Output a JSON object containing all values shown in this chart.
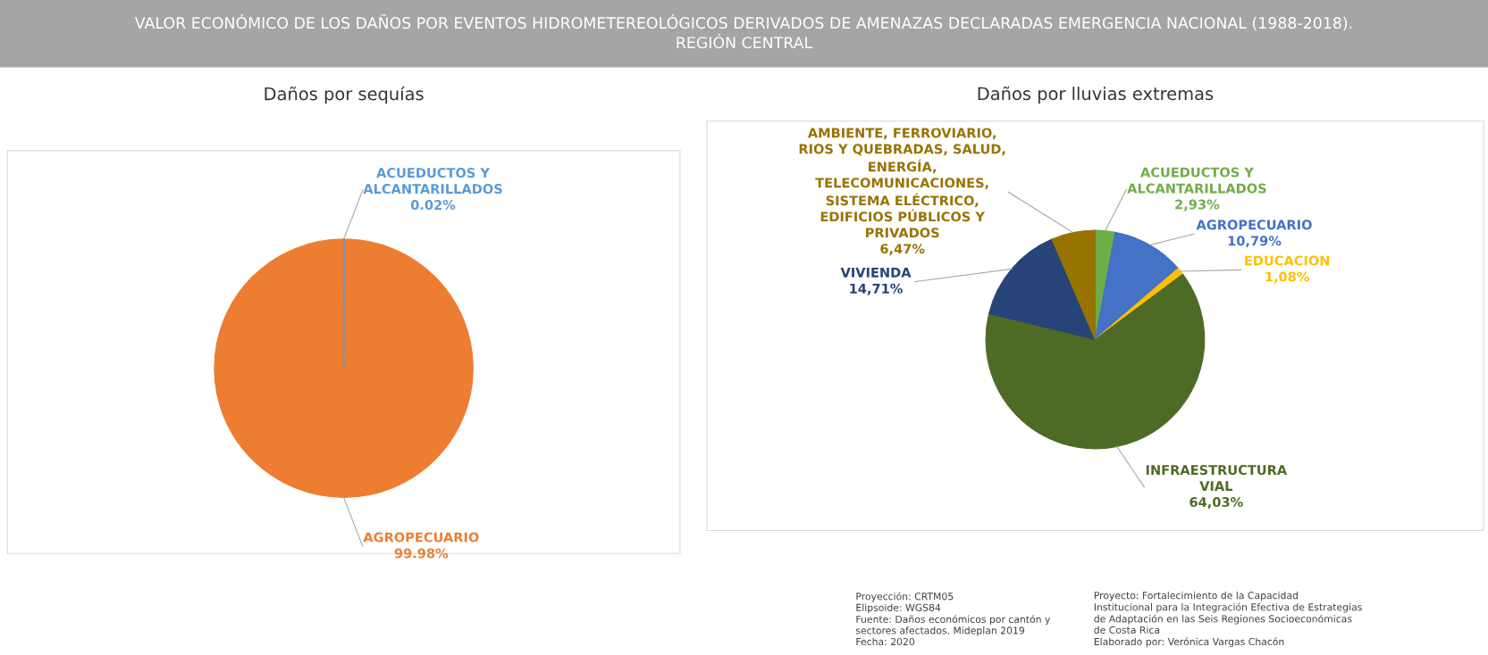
{
  "chart_data": [
    {
      "type": "other",
      "title": "VALOR ECONÓMICO DE LOS DAÑOS POR EVENTOS HIDROMETEREOLÓGICOS DERIVADOS DE AMENAZAS DECLARADAS EMERGENCIA NACIONAL (1988-2018).\nREGIÓN CENTRAL",
      "annotations": [
        "Proyección: CRTM05\nElipsoide: WGS84\nFuente: Daños económicos por cantón y\nsectores afectados. Mideplan 2019\nFecha: 2020",
        "Proyecto: Fortalecimiento de la Capacidad\nInstitucional para la Integración Efectiva de Estrategias\nde Adaptación en las Seis Regiones Socioeconómicas\nde Costa Rica\nElaborado por: Verónica Vargas Chacón"
      ]
    },
    {
      "type": "pie",
      "title": "Daños por sequías",
      "categories": [
        "ACUEDUCTOS Y\nALCANTARILLADOS",
        "AGROPECUARIO"
      ],
      "values": [
        0.02,
        99.98
      ],
      "colors": [
        "#5b9bd5",
        "#ed7d31"
      ],
      "value_labels": [
        "0.02%",
        "99.98%"
      ]
    },
    {
      "type": "pie",
      "title": "Daños por lluvias extremas",
      "categories": [
        "ACUEDUCTOS Y\nALCANTARILLADOS",
        "AGROPECUARIO",
        "EDUCACION",
        "INFRAESTRUCTURA\nVIAL",
        "VIVIENDA",
        "AMBIENTE, FERROVIARIO,\nRIOS Y QUEBRADAS, SALUD,\nENERGÍA,\nTELECOMUNICACIONES,\nSISTEMA ELÉCTRICO,\nEDIFICIOS PÚBLICOS Y\nPRIVADOS"
      ],
      "values": [
        2.93,
        10.79,
        1.08,
        64.03,
        14.71,
        6.47
      ],
      "colors": [
        "#70ad47",
        "#4472c4",
        "#ffc000",
        "#4e6b25",
        "#264478",
        "#997300"
      ],
      "value_labels": [
        "2,93%",
        "10,79%",
        "1,08%",
        "64,03%",
        "14,71%",
        "6,47%"
      ]
    }
  ]
}
